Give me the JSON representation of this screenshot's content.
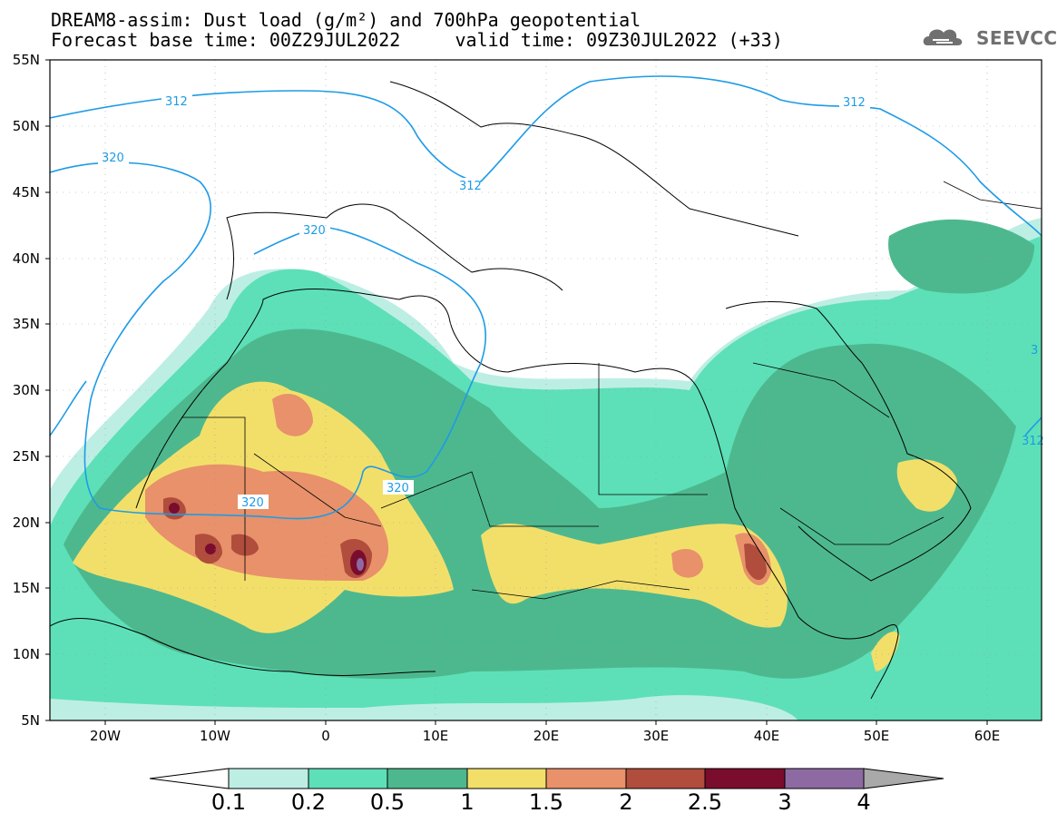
{
  "header": {
    "line1": "DREAM8-assim: Dust load (g/m²) and 700hPa geopotential",
    "line2": "Forecast base time: 00Z29JUL2022     valid time: 09Z30JUL2022 (+33)"
  },
  "logo": {
    "text": "SEEVCCC",
    "icon": "cloud-icon"
  },
  "map": {
    "lat_labels": [
      "55N",
      "50N",
      "45N",
      "40N",
      "35N",
      "30N",
      "25N",
      "20N",
      "15N",
      "10N",
      "5N"
    ],
    "lon_labels": [
      "20W",
      "10W",
      "0",
      "10E",
      "20E",
      "30E",
      "40E",
      "50E",
      "60E"
    ],
    "contour_labels": [
      "312",
      "320",
      "320",
      "320",
      "312",
      "312",
      "320",
      "312",
      "3"
    ],
    "contour_color": "#1e9be6"
  },
  "colorbar": {
    "labels": [
      "0.1",
      "0.2",
      "0.5",
      "1",
      "1.5",
      "2",
      "2.5",
      "3",
      "4"
    ],
    "colors": [
      "#bdeee4",
      "#5de0b7",
      "#4db88e",
      "#f2df6a",
      "#e8916a",
      "#b04d3c",
      "#7a0c2e",
      "#8e6aa3",
      "#a9a9a9"
    ]
  }
}
